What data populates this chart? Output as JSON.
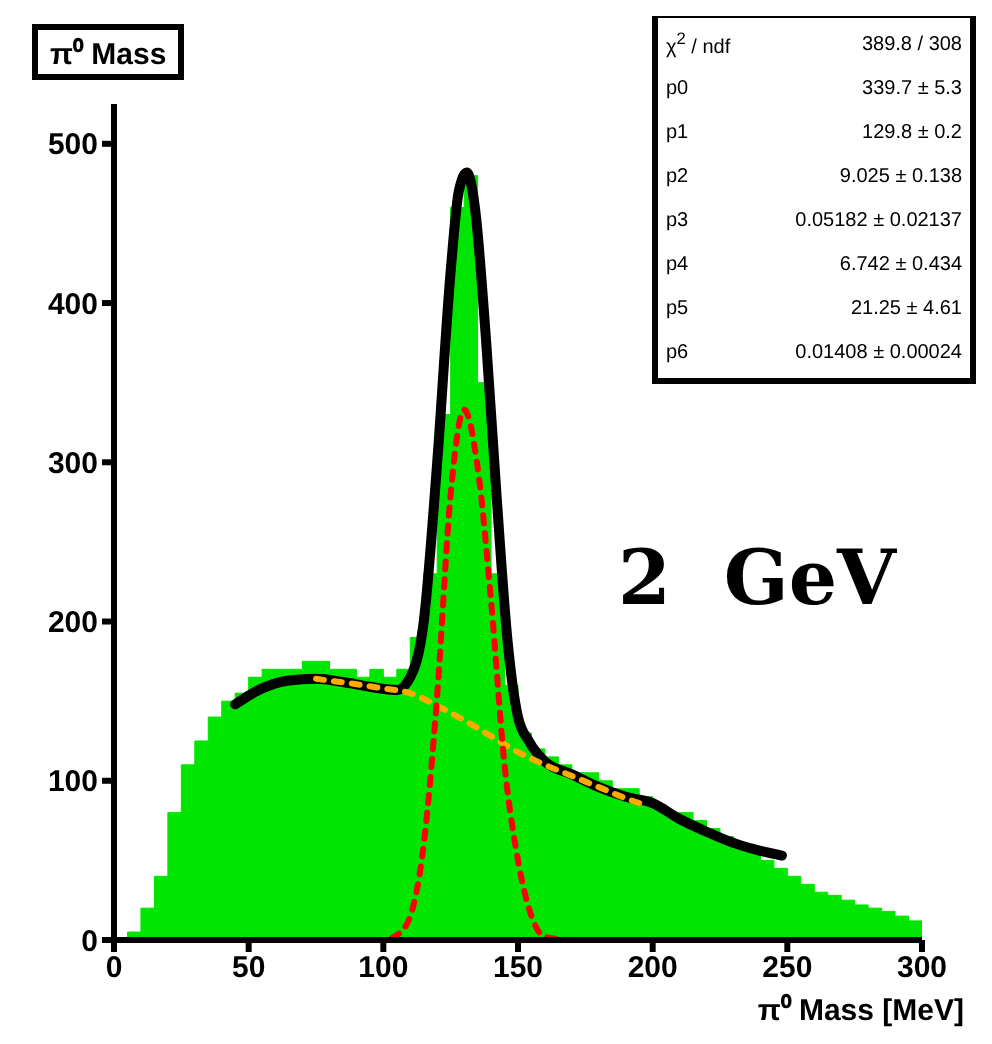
{
  "chart_data": {
    "type": "histogram",
    "title": "π⁰ Mass",
    "xlabel": "π⁰ Mass [MeV]",
    "bins": [
      0,
      5,
      10,
      15,
      20,
      25,
      30,
      35,
      40,
      45,
      50,
      55,
      60,
      65,
      70,
      75,
      80,
      85,
      90,
      95,
      100,
      105,
      110,
      115,
      120,
      125,
      130,
      135,
      140,
      145,
      150,
      155,
      160,
      165,
      170,
      175,
      180,
      185,
      190,
      195,
      200,
      205,
      210,
      215,
      220,
      225,
      230,
      235,
      240,
      245,
      250,
      255,
      260,
      265,
      270,
      275,
      280,
      285,
      290,
      295,
      300
    ],
    "values": [
      0,
      5,
      20,
      40,
      80,
      110,
      125,
      140,
      150,
      155,
      165,
      170,
      170,
      170,
      175,
      175,
      170,
      170,
      165,
      170,
      165,
      170,
      190,
      230,
      330,
      460,
      480,
      350,
      230,
      160,
      130,
      120,
      115,
      110,
      105,
      105,
      100,
      95,
      95,
      90,
      85,
      80,
      80,
      75,
      70,
      65,
      60,
      55,
      50,
      45,
      40,
      35,
      30,
      28,
      25,
      22,
      20,
      18,
      15,
      12
    ],
    "color": "#00e600",
    "series": [
      {
        "type": "line",
        "color": "#ff0000",
        "line_style": "dashed",
        "x": [
          70,
          100,
          105,
          110,
          115,
          120,
          125,
          130,
          135,
          140,
          145,
          150,
          155,
          160,
          170,
          195
        ],
        "values": [
          0,
          0,
          3,
          15,
          60,
          154,
          280,
          333,
          297,
          213,
          110,
          50,
          15,
          2,
          0,
          0
        ]
      },
      {
        "type": "line",
        "color": "#ffaa00",
        "line_style": "dashed",
        "x": [
          75,
          100,
          110,
          120,
          130,
          140,
          150,
          160,
          170,
          180,
          190,
          195
        ],
        "values": [
          164,
          158,
          155,
          147,
          138,
          128,
          118,
          110,
          103,
          96,
          89,
          86
        ]
      },
      {
        "type": "line",
        "color": "#000000",
        "line_style": "solid",
        "x": [
          45,
          55,
          65,
          75,
          85,
          95,
          105,
          110,
          115,
          120,
          125,
          128,
          131,
          134,
          138,
          142,
          146,
          150,
          154,
          160,
          170,
          180,
          190,
          200,
          210,
          220,
          230,
          240,
          248
        ],
        "values": [
          148,
          158,
          163,
          164,
          162,
          159,
          157,
          165,
          200,
          300,
          420,
          470,
          482,
          460,
          380,
          280,
          190,
          140,
          125,
          112,
          104,
          96,
          90,
          86,
          76,
          68,
          61,
          56,
          53
        ]
      }
    ],
    "xlim": [
      0,
      300
    ],
    "xticks": [
      0,
      50,
      100,
      150,
      200,
      250,
      300
    ],
    "ylim": [
      0,
      525
    ],
    "yticks": [
      0,
      100,
      200,
      300,
      400,
      500
    ],
    "grid": false,
    "marker": "none",
    "annotations": [
      "χ$^{2}$ / ndf\t389.8 / 308",
      "p0\t339.7 ± 5.3",
      "p1\t129.8 ± 0.2",
      "p2\t9.025 ± 0.138",
      "p3\t0.05182 ± 0.02137",
      "p4\t6.742 ± 0.434",
      "p5\t21.25 ± 4.61",
      "p6\t0.01408 ± 0.00024",
      "2  GeV"
    ]
  }
}
